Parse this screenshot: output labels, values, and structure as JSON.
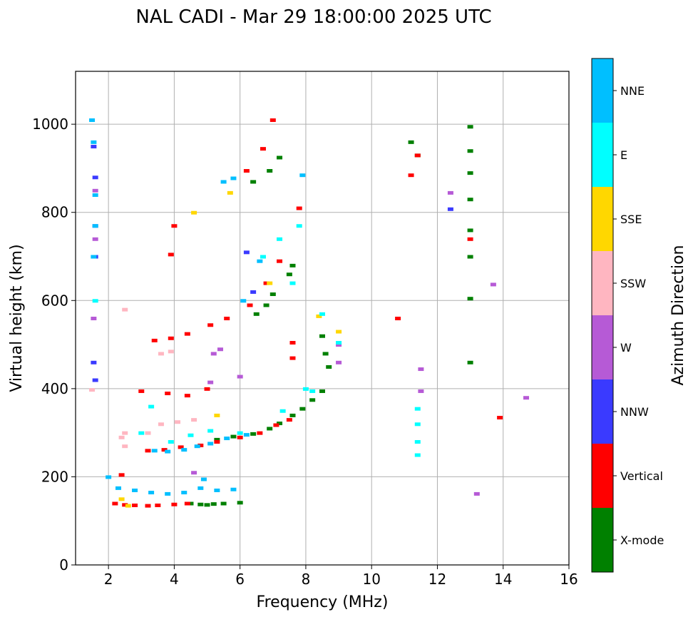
{
  "chart_data": {
    "type": "scatter",
    "title": "NAL CADI - Mar 29 18:00:00 2025 UTC",
    "xlabel": "Frequency (MHz)",
    "ylabel": "Virtual height (km)",
    "xlim": [
      1,
      16
    ],
    "ylim": [
      0,
      1120
    ],
    "xticks": [
      2,
      4,
      6,
      8,
      10,
      12,
      14,
      16
    ],
    "yticks": [
      0,
      200,
      400,
      600,
      800,
      1000
    ],
    "xtick_labels": [
      "2",
      "4",
      "6",
      "8",
      "10",
      "12",
      "14",
      "16"
    ],
    "ytick_labels": [
      "0",
      "200",
      "400",
      "600",
      "800",
      "1000"
    ],
    "grid": true,
    "colorbar": {
      "label": "Azimuth Direction",
      "categories": [
        "X-mode",
        "Vertical",
        "NNW",
        "W",
        "SSW",
        "SSE",
        "E",
        "NNE"
      ],
      "colors": [
        "#008000",
        "#ff0000",
        "#3a3aff",
        "#b65ad6",
        "#ffb6c1",
        "#ffd700",
        "#00ffff",
        "#00bfff"
      ]
    },
    "series": [
      {
        "name": "X-mode",
        "points": [
          [
            4.5,
            140
          ],
          [
            4.8,
            138
          ],
          [
            5.0,
            137
          ],
          [
            5.2,
            139
          ],
          [
            5.5,
            140
          ],
          [
            6.0,
            142
          ],
          [
            5.3,
            285
          ],
          [
            5.8,
            292
          ],
          [
            6.4,
            298
          ],
          [
            6.9,
            310
          ],
          [
            7.2,
            322
          ],
          [
            7.6,
            340
          ],
          [
            7.9,
            355
          ],
          [
            8.2,
            375
          ],
          [
            8.5,
            395
          ],
          [
            6.5,
            570
          ],
          [
            6.8,
            590
          ],
          [
            7.0,
            615
          ],
          [
            7.5,
            660
          ],
          [
            7.6,
            680
          ],
          [
            8.5,
            520
          ],
          [
            8.6,
            480
          ],
          [
            8.7,
            450
          ],
          [
            11.4,
            930
          ],
          [
            11.2,
            960
          ],
          [
            6.9,
            895
          ],
          [
            7.2,
            925
          ],
          [
            6.4,
            870
          ],
          [
            13.0,
            995
          ],
          [
            13.0,
            940
          ],
          [
            13.0,
            890
          ],
          [
            13.0,
            830
          ],
          [
            13.0,
            760
          ],
          [
            13.0,
            700
          ],
          [
            13.0,
            605
          ],
          [
            13.0,
            460
          ]
        ]
      },
      {
        "name": "Vertical",
        "points": [
          [
            2.2,
            140
          ],
          [
            2.5,
            137
          ],
          [
            2.8,
            136
          ],
          [
            3.2,
            135
          ],
          [
            3.5,
            136
          ],
          [
            4.0,
            138
          ],
          [
            4.4,
            140
          ],
          [
            2.4,
            205
          ],
          [
            3.2,
            260
          ],
          [
            3.7,
            262
          ],
          [
            4.2,
            268
          ],
          [
            4.8,
            272
          ],
          [
            5.3,
            280
          ],
          [
            6.0,
            290
          ],
          [
            6.6,
            300
          ],
          [
            7.1,
            318
          ],
          [
            7.5,
            330
          ],
          [
            3.0,
            395
          ],
          [
            3.8,
            390
          ],
          [
            4.4,
            385
          ],
          [
            5.0,
            400
          ],
          [
            3.4,
            510
          ],
          [
            3.9,
            515
          ],
          [
            4.4,
            525
          ],
          [
            5.1,
            545
          ],
          [
            5.6,
            560
          ],
          [
            6.3,
            590
          ],
          [
            6.8,
            640
          ],
          [
            7.2,
            690
          ],
          [
            7.6,
            505
          ],
          [
            7.6,
            470
          ],
          [
            6.2,
            895
          ],
          [
            6.7,
            945
          ],
          [
            7.0,
            1010
          ],
          [
            4.0,
            770
          ],
          [
            3.9,
            705
          ],
          [
            10.8,
            560
          ],
          [
            11.2,
            885
          ],
          [
            11.4,
            930
          ],
          [
            13.9,
            335
          ],
          [
            13.0,
            740
          ],
          [
            7.8,
            810
          ]
        ]
      },
      {
        "name": "NNW",
        "points": [
          [
            1.55,
            950
          ],
          [
            1.6,
            880
          ],
          [
            1.6,
            770
          ],
          [
            1.6,
            700
          ],
          [
            1.55,
            460
          ],
          [
            1.6,
            420
          ],
          [
            6.2,
            710
          ],
          [
            6.4,
            620
          ],
          [
            12.4,
            808
          ]
        ]
      },
      {
        "name": "W",
        "points": [
          [
            1.6,
            850
          ],
          [
            1.6,
            740
          ],
          [
            1.55,
            560
          ],
          [
            9.0,
            460
          ],
          [
            9.0,
            500
          ],
          [
            12.4,
            845
          ],
          [
            13.7,
            637
          ],
          [
            14.7,
            380
          ],
          [
            13.2,
            162
          ],
          [
            11.5,
            445
          ],
          [
            11.5,
            395
          ],
          [
            5.4,
            490
          ],
          [
            5.2,
            480
          ],
          [
            5.1,
            415
          ],
          [
            4.6,
            210
          ],
          [
            6.0,
            428
          ]
        ]
      },
      {
        "name": "SSW",
        "points": [
          [
            1.5,
            398
          ],
          [
            2.5,
            300
          ],
          [
            2.4,
            290
          ],
          [
            3.2,
            300
          ],
          [
            3.6,
            320
          ],
          [
            4.1,
            325
          ],
          [
            4.6,
            330
          ],
          [
            3.6,
            480
          ],
          [
            3.9,
            485
          ],
          [
            2.5,
            580
          ],
          [
            2.5,
            270
          ]
        ]
      },
      {
        "name": "SSE",
        "points": [
          [
            2.4,
            150
          ],
          [
            2.6,
            135
          ],
          [
            5.7,
            845
          ],
          [
            4.6,
            800
          ],
          [
            5.3,
            340
          ],
          [
            8.4,
            565
          ],
          [
            9.0,
            530
          ],
          [
            6.9,
            640
          ]
        ]
      },
      {
        "name": "E",
        "points": [
          [
            1.6,
            600
          ],
          [
            3.0,
            300
          ],
          [
            3.3,
            360
          ],
          [
            3.9,
            280
          ],
          [
            4.5,
            295
          ],
          [
            5.1,
            305
          ],
          [
            6.0,
            300
          ],
          [
            7.3,
            350
          ],
          [
            8.2,
            395
          ],
          [
            11.4,
            355
          ],
          [
            11.4,
            320
          ],
          [
            11.4,
            280
          ],
          [
            11.4,
            250
          ],
          [
            8.5,
            570
          ],
          [
            9.0,
            505
          ],
          [
            7.2,
            740
          ],
          [
            7.8,
            770
          ],
          [
            6.7,
            700
          ],
          [
            7.6,
            640
          ],
          [
            8.0,
            400
          ]
        ]
      },
      {
        "name": "NNE",
        "points": [
          [
            1.5,
            1010
          ],
          [
            1.55,
            960
          ],
          [
            1.6,
            840
          ],
          [
            1.6,
            770
          ],
          [
            1.55,
            700
          ],
          [
            2.3,
            175
          ],
          [
            2.8,
            170
          ],
          [
            3.3,
            165
          ],
          [
            3.8,
            162
          ],
          [
            4.3,
            165
          ],
          [
            4.8,
            175
          ],
          [
            5.3,
            170
          ],
          [
            5.8,
            172
          ],
          [
            4.9,
            195
          ],
          [
            2.0,
            200
          ],
          [
            3.4,
            260
          ],
          [
            3.8,
            258
          ],
          [
            4.3,
            262
          ],
          [
            4.7,
            270
          ],
          [
            5.1,
            276
          ],
          [
            5.6,
            288
          ],
          [
            6.2,
            296
          ],
          [
            5.5,
            870
          ],
          [
            5.8,
            878
          ],
          [
            7.9,
            885
          ],
          [
            6.1,
            600
          ],
          [
            6.6,
            690
          ]
        ]
      }
    ]
  }
}
